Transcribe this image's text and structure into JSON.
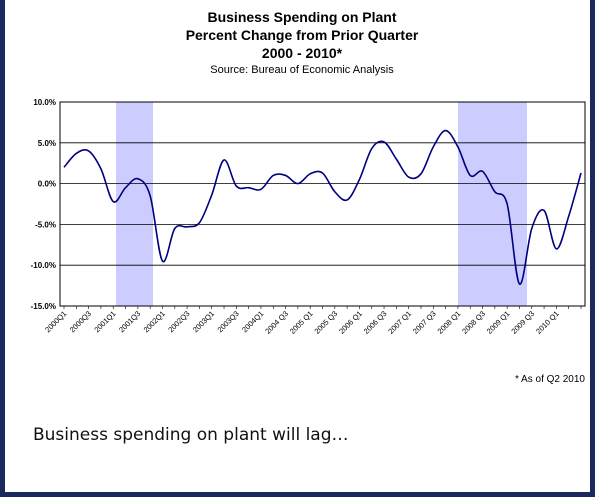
{
  "chart_data": {
    "type": "line",
    "title": [
      "Business Spending on Plant",
      "Percent Change from Prior Quarter",
      "2000 - 2010*"
    ],
    "subtitle": "Source: Bureau of Economic Analysis",
    "note": "* As of Q2 2010",
    "categories": [
      "2000Q1",
      null,
      "2000Q3",
      null,
      "2001Q1",
      null,
      "2001Q3",
      null,
      "2002Q1",
      null,
      "2002Q3",
      null,
      "2003Q1",
      null,
      "2003Q3",
      null,
      "2004Q1",
      null,
      "2004 Q3",
      null,
      "2005 Q1",
      null,
      "2005 Q3",
      null,
      "2006 Q1",
      null,
      "2006 Q3",
      null,
      "2007 Q1",
      null,
      "2007 Q3",
      null,
      "2008 Q1",
      null,
      "2008 Q3",
      null,
      "2009 Q1",
      null,
      "2009 Q3",
      null,
      "2010 Q1",
      null,
      null
    ],
    "values": [
      2.0,
      3.7,
      4.0,
      1.8,
      -2.2,
      -0.5,
      0.6,
      -1.5,
      -9.5,
      -5.5,
      -5.3,
      -4.8,
      -1.4,
      2.9,
      -0.3,
      -0.5,
      -0.7,
      1.0,
      1.0,
      0.0,
      1.2,
      1.3,
      -1.0,
      -2.0,
      0.5,
      4.3,
      5.1,
      3.0,
      0.8,
      1.2,
      4.5,
      6.5,
      4.5,
      1.0,
      1.5,
      -1.0,
      -2.5,
      -12.3,
      -5.5,
      -3.3,
      -8.0,
      -4.0,
      1.3
    ],
    "color": "#000080",
    "ylim": [
      -15,
      10
    ],
    "yticks": [
      {
        "value": -15,
        "label": "-15.0%"
      },
      {
        "value": -10,
        "label": "-10.0%"
      },
      {
        "value": -5,
        "label": "-5.0%"
      },
      {
        "value": 0,
        "label": "0.0%"
      },
      {
        "value": 5,
        "label": "5.0%"
      },
      {
        "value": 10,
        "label": "10.0%"
      }
    ],
    "grid": true
  },
  "caption": "Business spending on plant will lag…"
}
